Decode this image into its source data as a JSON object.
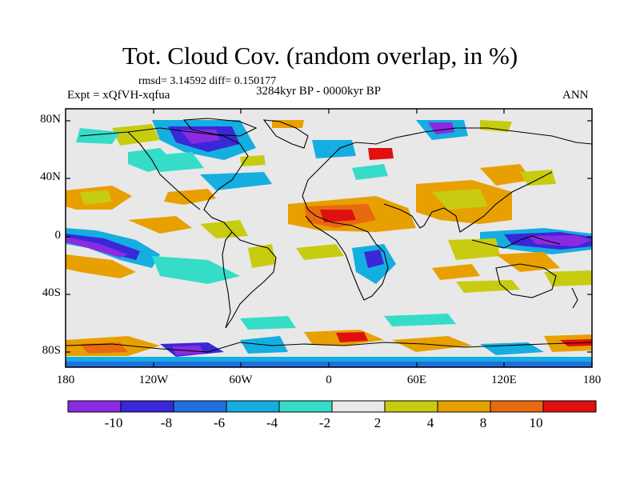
{
  "title": "Tot. Cloud Cov. (random overlap, in %)",
  "stats": "rmsd= 3.14592 diff= 0.150177",
  "experiment": "Expt = xQfVH-xqfua",
  "period": "3284kyr BP - 0000kyr BP",
  "season": "ANN",
  "lat_labels": [
    "80N",
    "40N",
    "0",
    "40S",
    "80S"
  ],
  "lon_labels": [
    "180",
    "120W",
    "60W",
    "0",
    "60E",
    "120E",
    "180"
  ],
  "colorbar": {
    "labels": [
      "-10",
      "-8",
      "-6",
      "-4",
      "-2",
      "2",
      "4",
      "8",
      "10"
    ],
    "colors": [
      "#8a2be2",
      "#3a28d8",
      "#1f6fe0",
      "#15aee0",
      "#35dcc8",
      "#e8e8e8",
      "#c8cc10",
      "#e8a000",
      "#e86a10",
      "#e01010"
    ]
  }
}
